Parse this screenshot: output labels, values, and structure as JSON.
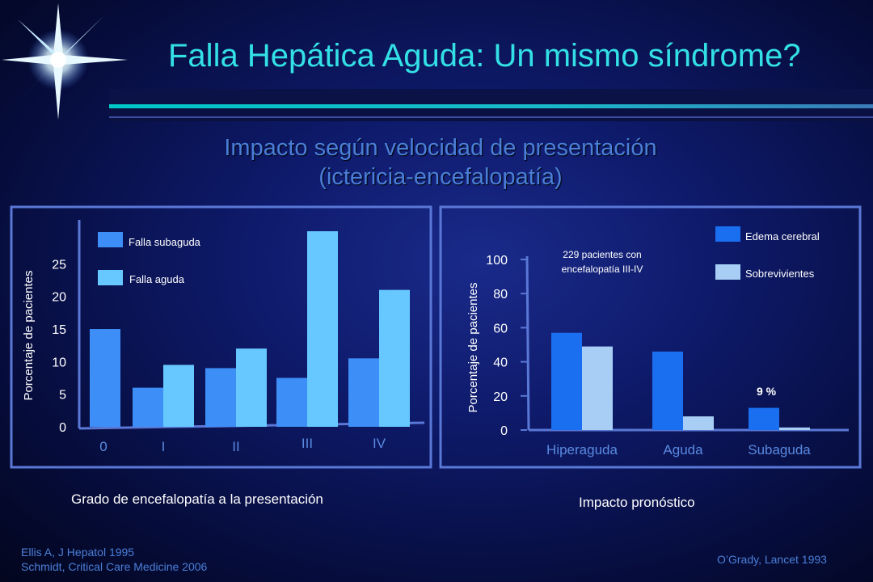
{
  "title": "Falla Hepática Aguda: Un mismo síndrome?",
  "subtitle_line1": "Impacto según velocidad de presentación",
  "subtitle_line2": "(ictericia-encefalopatía)",
  "chart_data": [
    {
      "type": "bar",
      "categories": [
        "0",
        "I",
        "II",
        "III",
        "IV"
      ],
      "series": [
        {
          "name": "Falla subaguda",
          "values": [
            15,
            6,
            9,
            7.5,
            10.5
          ],
          "color": "#3d8ef7"
        },
        {
          "name": "Falla aguda",
          "values": [
            0,
            9.5,
            12,
            30,
            21
          ],
          "color": "#66c8ff"
        }
      ],
      "ylabel": "Porcentaje de pacientes",
      "xlabel": "",
      "yticks": [
        "0",
        "5",
        "10",
        "15",
        "20",
        "25"
      ],
      "ylim": [
        0,
        31
      ],
      "legend": "top-left",
      "caption": "Grado de encefalopatía a la presentación"
    },
    {
      "type": "bar",
      "categories": [
        "Hiperaguda",
        "Aguda",
        "Subaguda"
      ],
      "series": [
        {
          "name": "Edema cerebral",
          "values": [
            57,
            46,
            13
          ],
          "color": "#1a6ff0"
        },
        {
          "name": "Sobrevivientes",
          "values": [
            49,
            8,
            1.5
          ],
          "color": "#a8cef5"
        }
      ],
      "ylabel": "Porcentaje de pacientes",
      "xlabel": "",
      "yticks": [
        "0",
        "20",
        "40",
        "60",
        "80",
        "100"
      ],
      "ylim": [
        0,
        100
      ],
      "legend": "top-right",
      "annotation_line1": "229 pacientes con",
      "annotation_line2": "encefalopatía III-IV",
      "data_label": "9 %",
      "caption": "Impacto pronóstico"
    }
  ],
  "references_left_line1": "Ellis A, J Hepatol 1995",
  "references_left_line2": "Schmidt, Critical Care Medicine 2006",
  "reference_right": "O’Grady, Lancet 1993"
}
